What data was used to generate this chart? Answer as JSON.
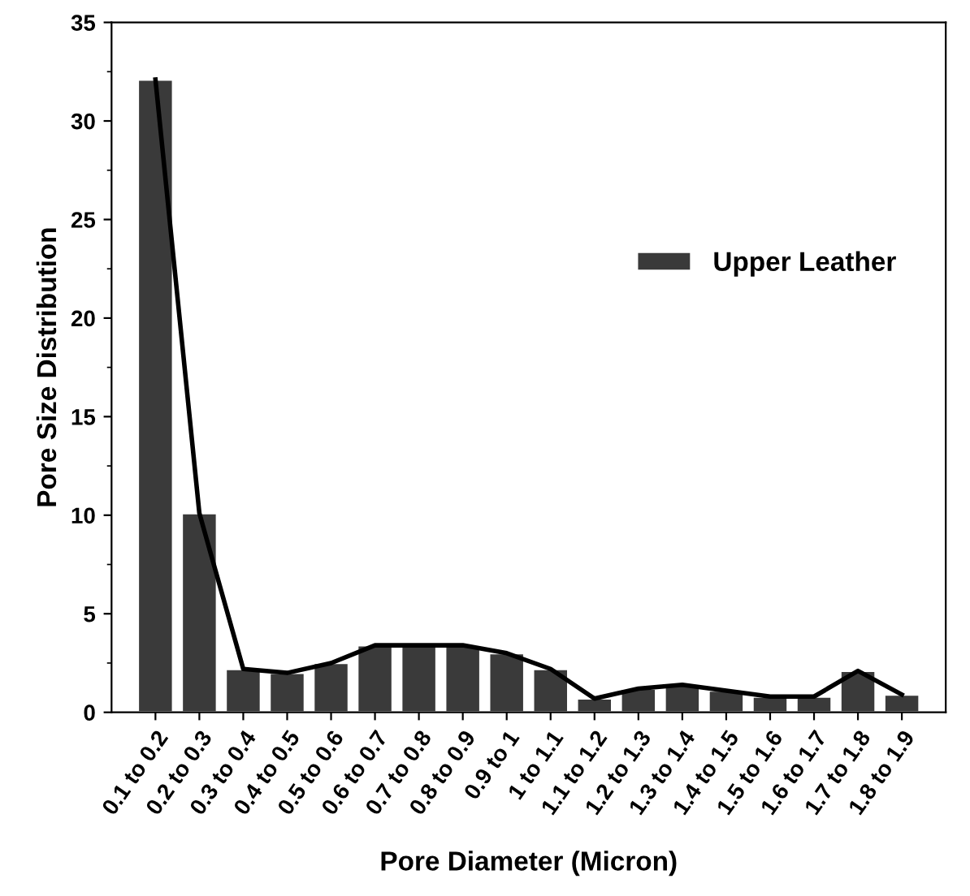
{
  "chart_data": {
    "type": "bar",
    "xlabel": "Pore Diameter (Micron)",
    "ylabel": "Pore Size Distribution",
    "categories": [
      "0.1 to 0.2",
      "0.2 to 0.3",
      "0.3 to 0.4",
      "0.4 to 0.5",
      "0.5 to 0.6",
      "0.6 to 0.7",
      "0.7 to 0.8",
      "0.8 to 0.9",
      "0.9 to 1",
      "1 to 1.1",
      "1.1 to 1.2",
      "1.2 to 1.3",
      "1.3 to 1.4",
      "1.4 to 1.5",
      "1.5 to 1.6",
      "1.6 to 1.7",
      "1.7 to 1.8",
      "1.8 to 1.9"
    ],
    "series": [
      {
        "name": "Upper Leather",
        "color": "#3a3a3a",
        "values": [
          32.1,
          10.1,
          2.2,
          2.0,
          2.5,
          3.4,
          3.4,
          3.4,
          3.0,
          2.2,
          0.7,
          1.2,
          1.4,
          1.1,
          0.8,
          0.8,
          2.1,
          0.9
        ]
      },
      {
        "type": "line",
        "color": "#000000",
        "values": [
          32.1,
          10.1,
          2.2,
          2.0,
          2.5,
          3.4,
          3.4,
          3.4,
          3.0,
          2.2,
          0.7,
          1.2,
          1.4,
          1.1,
          0.8,
          0.8,
          2.1,
          0.9
        ]
      }
    ],
    "ylim": [
      0,
      35
    ],
    "yticks": [
      0,
      5,
      10,
      15,
      20,
      25,
      30,
      35
    ],
    "grid": false,
    "legend": "right"
  }
}
